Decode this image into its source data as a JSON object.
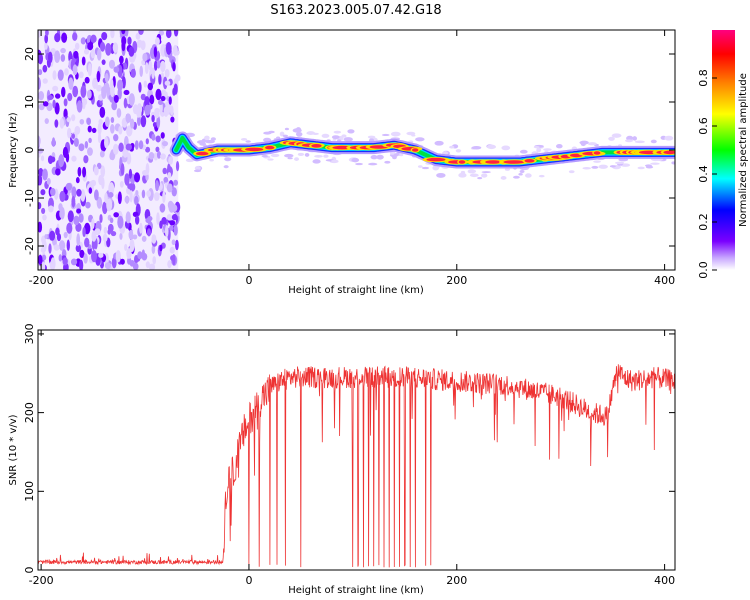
{
  "title": "S163.2023.005.07.42.G18",
  "chart_data": [
    {
      "type": "heatmap",
      "panel": "spectrogram",
      "xlabel": "Height of straight line (km)",
      "ylabel": "Frequency (Hz)",
      "xlim": [
        -203,
        410
      ],
      "ylim": [
        -25,
        25
      ],
      "x_ticks": [
        -200,
        0,
        200,
        400
      ],
      "y_ticks": [
        -20,
        -10,
        0,
        10,
        20
      ],
      "noise_region_x": [
        -203,
        -68
      ],
      "signal_ridge": {
        "x": [
          -70,
          -64,
          -58,
          -50,
          -40,
          -30,
          -20,
          0,
          20,
          40,
          60,
          80,
          100,
          120,
          140,
          150,
          160,
          170,
          180,
          200,
          220,
          240,
          260,
          280,
          300,
          320,
          340,
          360,
          380,
          400,
          410
        ],
        "y": [
          0,
          2.5,
          0.5,
          -1.0,
          -0.5,
          0,
          0,
          0,
          0.5,
          1.5,
          1.0,
          0.5,
          0.5,
          0.5,
          1.0,
          0.5,
          0,
          -1.0,
          -2.0,
          -2.5,
          -2.5,
          -2.5,
          -2.5,
          -2.0,
          -1.5,
          -1.0,
          -0.5,
          -0.5,
          -0.5,
          -0.5,
          -0.5
        ]
      },
      "colorbar": {
        "label": "Normalized spectral amplitude",
        "ticks": [
          "0.0",
          "0.2",
          "0.4",
          "0.6",
          "0.8"
        ],
        "range": [
          0,
          1
        ],
        "colors": [
          "#ffffff",
          "#6a00ff",
          "#0000ff",
          "#00ffff",
          "#00ff00",
          "#ffff00",
          "#ff8000",
          "#ff0000",
          "#ff007f"
        ]
      }
    },
    {
      "type": "line",
      "panel": "snr",
      "xlabel": "Height of straight line (km)",
      "ylabel": "SNR (10 * v/v)",
      "xlim": [
        -203,
        410
      ],
      "ylim": [
        0,
        305
      ],
      "x_ticks": [
        -200,
        0,
        200,
        400
      ],
      "y_ticks": [
        0,
        100,
        200,
        300
      ],
      "line_color": "#ee3333",
      "envelope": {
        "x": [
          -203,
          -150,
          -100,
          -50,
          -25,
          -22,
          -15,
          -5,
          0,
          10,
          20,
          30,
          40,
          60,
          80,
          100,
          120,
          150,
          200,
          250,
          300,
          330,
          345,
          350,
          355,
          360,
          370,
          390,
          410
        ],
        "y": [
          10,
          10,
          10,
          10,
          10,
          100,
          125,
          175,
          190,
          215,
          230,
          240,
          245,
          245,
          245,
          245,
          245,
          245,
          240,
          235,
          220,
          200,
          195,
          230,
          255,
          245,
          240,
          245,
          240
        ]
      },
      "dropouts_x": [
        0,
        10,
        20,
        27,
        35,
        50,
        100,
        105,
        110,
        115,
        120,
        125,
        130,
        135,
        140,
        145,
        150,
        155,
        160,
        170,
        175
      ]
    }
  ]
}
